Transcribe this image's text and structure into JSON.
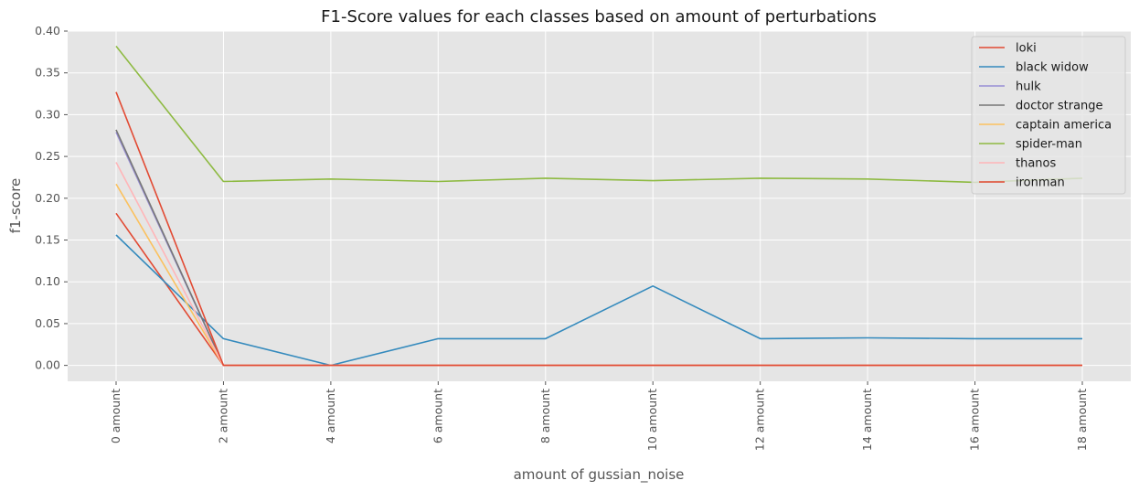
{
  "chart_data": {
    "type": "line",
    "title": "F1-Score values for each classes based on amount of perturbations",
    "xlabel": "amount of gussian_noise",
    "ylabel": "f1-score",
    "categories": [
      "0 amount",
      "2 amount",
      "4 amount",
      "6 amount",
      "8 amount",
      "10 amount",
      "12 amount",
      "14 amount",
      "16 amount",
      "18 amount"
    ],
    "ylim": [
      -0.019,
      0.4
    ],
    "yticks": [
      "0.00",
      "0.05",
      "0.10",
      "0.15",
      "0.20",
      "0.25",
      "0.30",
      "0.35",
      "0.40"
    ],
    "grid": true,
    "legend_position": "top-right",
    "series": [
      {
        "name": "loki",
        "color": "#E24A33",
        "values": [
          0.182,
          0,
          0,
          0,
          0,
          0,
          0,
          0,
          0,
          0
        ]
      },
      {
        "name": "black widow",
        "color": "#348ABD",
        "values": [
          0.156,
          0.032,
          0.0,
          0.032,
          0.032,
          0.095,
          0.032,
          0.033,
          0.032,
          0.032
        ]
      },
      {
        "name": "hulk",
        "color": "#988ED5",
        "values": [
          0.279,
          0,
          0,
          0,
          0,
          0,
          0,
          0,
          0,
          0
        ]
      },
      {
        "name": "doctor strange",
        "color": "#777777",
        "values": [
          0.282,
          0,
          0,
          0,
          0,
          0,
          0,
          0,
          0,
          0
        ]
      },
      {
        "name": "captain america",
        "color": "#FBC15E",
        "values": [
          0.217,
          0,
          0,
          0,
          0,
          0,
          0,
          0,
          0,
          0
        ]
      },
      {
        "name": "spider-man",
        "color": "#8EBA42",
        "values": [
          0.382,
          0.22,
          0.223,
          0.22,
          0.224,
          0.221,
          0.224,
          0.223,
          0.219,
          0.224
        ]
      },
      {
        "name": "thanos",
        "color": "#FFB5B8",
        "values": [
          0.243,
          0,
          0,
          0,
          0,
          0,
          0,
          0,
          0,
          0
        ]
      },
      {
        "name": "ironman",
        "color": "#E24A33",
        "values": [
          0.327,
          0,
          0,
          0,
          0,
          0,
          0,
          0,
          0,
          0
        ]
      }
    ]
  }
}
